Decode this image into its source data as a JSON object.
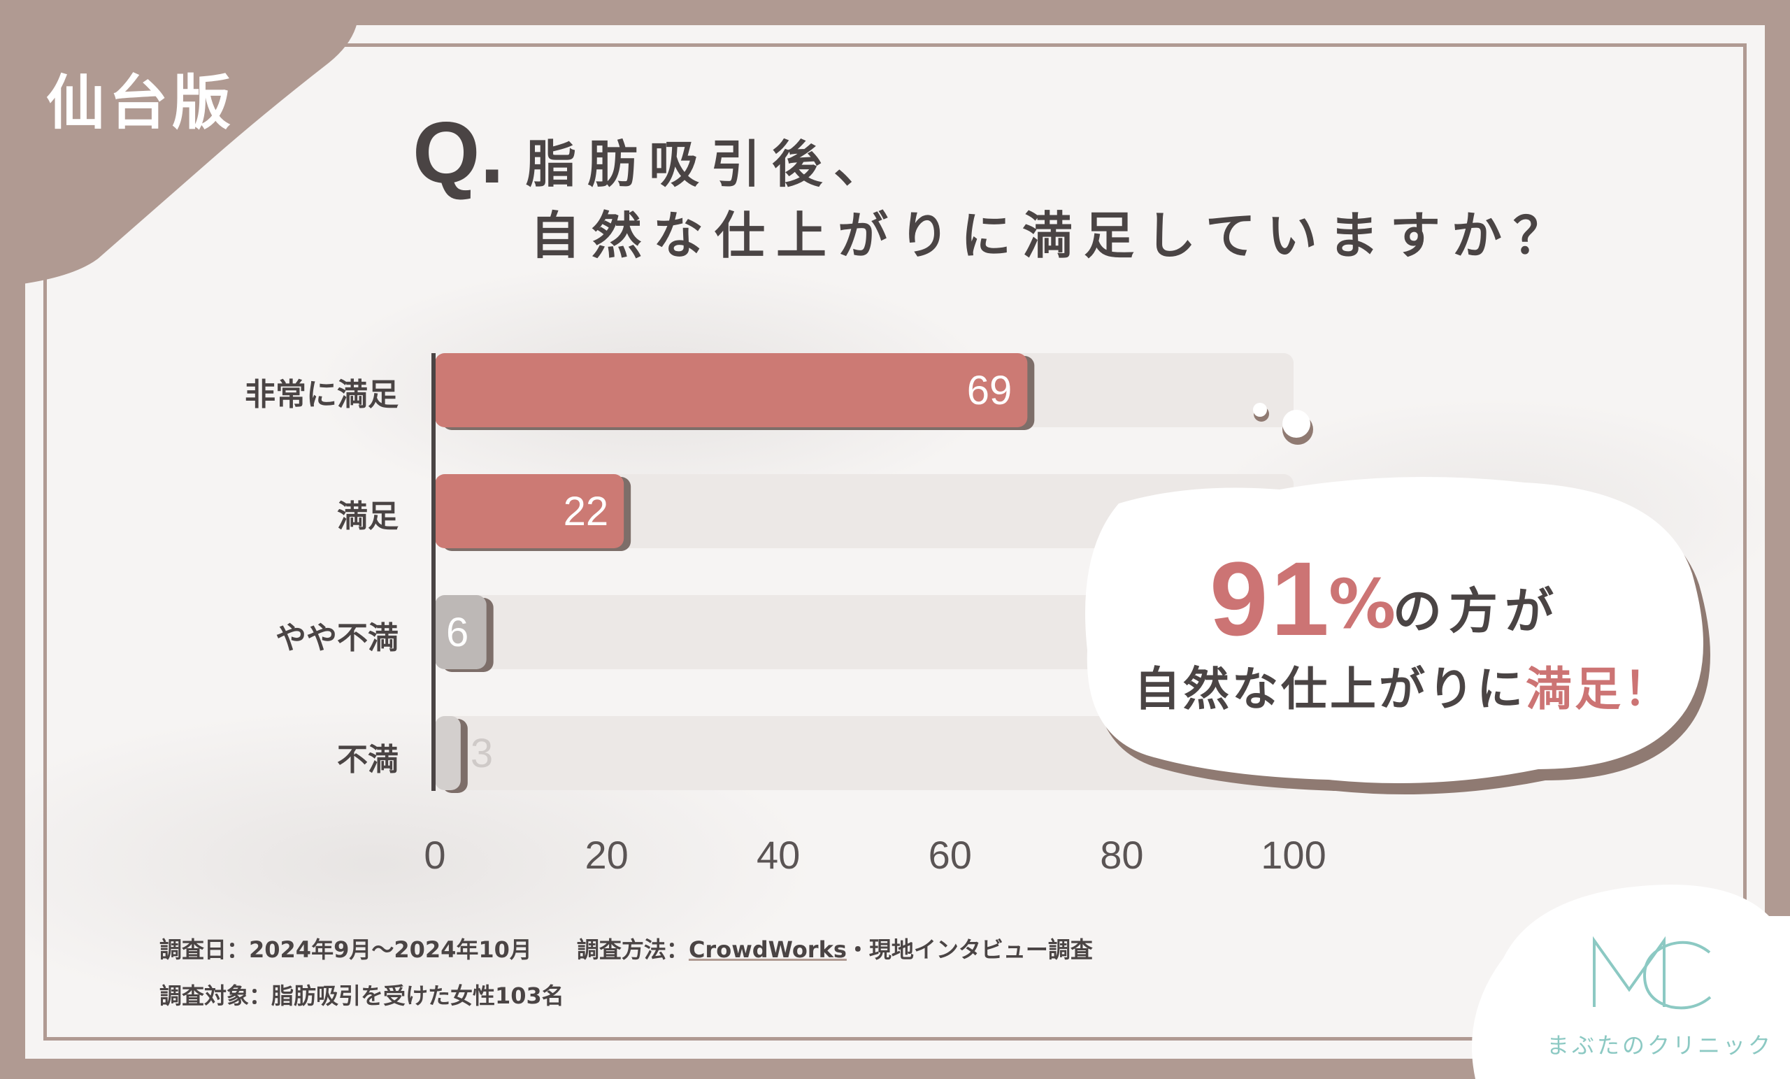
{
  "region_label": "仙台版",
  "question": {
    "mark": "Q.",
    "line1": "脂肪吸引後、",
    "line2": "自然な仕上がりに満足していますか？"
  },
  "chart_data": {
    "type": "bar",
    "orientation": "horizontal",
    "categories": [
      "非常に満足",
      "満足",
      "やや不満",
      "不満"
    ],
    "values": [
      69,
      22,
      6,
      3
    ],
    "value_labels": [
      "69",
      "22",
      "6",
      "3"
    ],
    "xlim": [
      0,
      100
    ],
    "xticks": [
      "0",
      "20",
      "40",
      "60",
      "80",
      "100"
    ],
    "bar_colors": [
      "#cc7a74",
      "#cc7a74",
      "#bdb8b6",
      "#d3cfcd"
    ],
    "track_color": "#ece8e6",
    "axis_color": "#4a4444",
    "grid": false
  },
  "callout": {
    "big_number": "91",
    "percent_sign": "%",
    "line1_tail": "の方が",
    "line2_prefix": "自然な仕上がりに",
    "line2_accent": "満足！",
    "accent_color": "#cc7474"
  },
  "footnotes": {
    "line1_a": "調査日：2024年9月～2024年10月　　調査方法：",
    "line1_link": "CrowdWorks",
    "line1_b": "・現地インタビュー調査",
    "line2": "調査対象：脂肪吸引を受けた女性103名"
  },
  "logo": {
    "mark": "MC",
    "name": "まぶたのクリニック"
  },
  "colors": {
    "frame": "#b09a92",
    "panel": "#f6f4f3",
    "text": "#4a4444",
    "logo": "#8cc9c3"
  }
}
